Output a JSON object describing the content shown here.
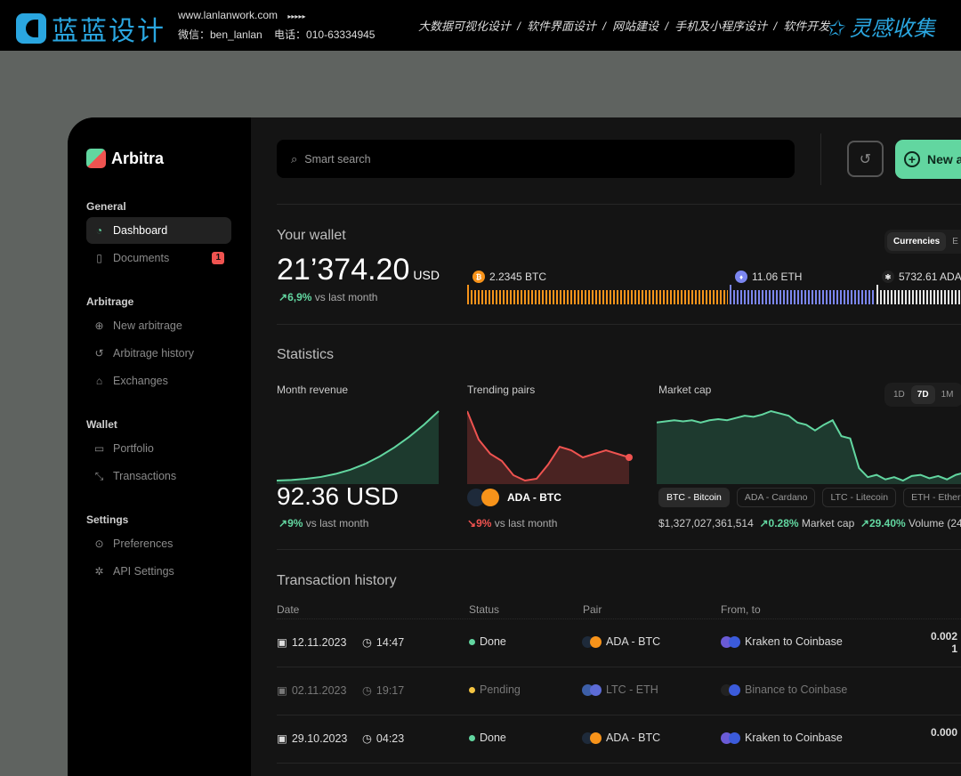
{
  "banner": {
    "logo_text": "蓝蓝设计",
    "url": "www.lanlanwork.com",
    "arrows": "▸▸▸▸▸",
    "contact": "微信：ben_lanlan    电话：010-63334945",
    "services": "大数据可视化设计  /  软件界面设计  /  网站建设  /  手机及小程序设计  /  软件开发",
    "right_logo": "灵感收集"
  },
  "app": {
    "name": "Arbitra"
  },
  "sidebar": {
    "sections": [
      {
        "title": "General",
        "items": [
          {
            "label": "Dashboard",
            "icon": "dashboard-icon",
            "active": true
          },
          {
            "label": "Documents",
            "icon": "document-icon",
            "badge": "1"
          }
        ]
      },
      {
        "title": "Arbitrage",
        "items": [
          {
            "label": "New arbitrage",
            "icon": "plus-circle-icon"
          },
          {
            "label": "Arbitrage history",
            "icon": "history-icon"
          },
          {
            "label": "Exchanges",
            "icon": "home-icon"
          }
        ]
      },
      {
        "title": "Wallet",
        "items": [
          {
            "label": "Portfolio",
            "icon": "wallet-icon"
          },
          {
            "label": "Transactions",
            "icon": "transactions-icon"
          }
        ]
      },
      {
        "title": "Settings",
        "items": [
          {
            "label": "Preferences",
            "icon": "toggle-icon"
          },
          {
            "label": "API Settings",
            "icon": "plug-icon"
          }
        ]
      }
    ]
  },
  "header": {
    "search_placeholder": "Smart search",
    "new_button": "New a"
  },
  "wallet": {
    "title": "Your wallet",
    "amount": "21’374.20",
    "currency": "USD",
    "change": "6,9%",
    "change_text": "vs last month",
    "toggle": [
      "Currencies",
      "E"
    ],
    "holdings": [
      {
        "label": "2.2345 BTC",
        "color": "#f7931a"
      },
      {
        "label": "11.06 ETH",
        "color": "#7b86f0"
      },
      {
        "label": "5732.61 ADA",
        "color": "#e6e6e6"
      }
    ]
  },
  "statistics": {
    "title": "Statistics",
    "month_revenue": {
      "label": "Month revenue",
      "value": "92.36 USD",
      "change": "9%",
      "change_text": "vs last month",
      "series": [
        0,
        0.2,
        0.6,
        1.2,
        2.2,
        3.6,
        5.5,
        8,
        11,
        14.5,
        18.5,
        23
      ]
    },
    "trending_pairs": {
      "label": "Trending pairs",
      "pair": "ADA - BTC",
      "change": "9%",
      "change_text": "vs last month",
      "series": [
        22,
        14,
        10,
        8,
        4,
        2.5,
        3,
        7,
        12,
        11,
        9,
        10,
        11,
        10,
        9
      ]
    },
    "market_cap": {
      "label": "Market cap",
      "ranges": [
        "1D",
        "7D",
        "1M"
      ],
      "active_range": "7D",
      "coins": [
        "BTC - Bitcoin",
        "ADA - Cardano",
        "LTC - Litecoin",
        "ETH - Ethereu"
      ],
      "active_coin": "BTC - Bitcoin",
      "value": "$1,327,027,361,514",
      "cap_change": "0.28%",
      "cap_label": "Market cap",
      "volume_change": "29.40%",
      "volume_label": "Volume (24",
      "series": [
        70,
        71,
        72,
        71,
        72,
        70,
        72,
        73,
        72,
        74,
        76,
        75,
        77,
        80,
        78,
        76,
        70,
        68,
        63,
        68,
        72,
        58,
        56,
        30,
        22,
        24,
        20,
        22,
        19,
        23,
        24,
        21,
        23,
        20,
        24,
        26
      ]
    }
  },
  "transactions": {
    "title": "Transaction history",
    "columns": [
      "Date",
      "Status",
      "Pair",
      "From, to"
    ],
    "rows": [
      {
        "date": "12.11.2023",
        "time": "14:47",
        "status": "Done",
        "status_color": "#62d6a0",
        "pair": "ADA - BTC",
        "route": "Kraken to Coinbase",
        "amount": "0.002",
        "amount2": "1"
      },
      {
        "date": "02.11.2023",
        "time": "19:17",
        "status": "Pending",
        "status_color": "#f5c542",
        "pair": "LTC - ETH",
        "route": "Binance to Coinbase",
        "amount": "",
        "amount2": ""
      },
      {
        "date": "29.10.2023",
        "time": "04:23",
        "status": "Done",
        "status_color": "#62d6a0",
        "pair": "ADA - BTC",
        "route": "Kraken to Coinbase",
        "amount": "0.000",
        "amount2": ""
      }
    ]
  }
}
